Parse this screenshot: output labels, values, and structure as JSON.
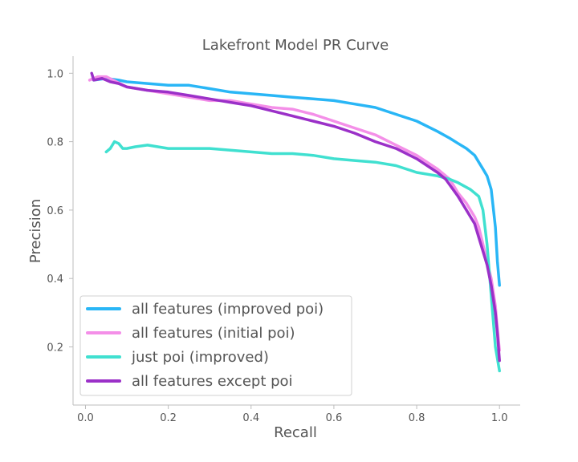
{
  "chart_data": {
    "type": "line",
    "title": "Lakefront Model PR Curve",
    "xlabel": "Recall",
    "ylabel": "Precision",
    "xlim": [
      -0.03,
      1.05
    ],
    "ylim": [
      0.03,
      1.05
    ],
    "xticks": [
      0.0,
      0.2,
      0.4,
      0.6,
      0.8,
      1.0
    ],
    "xtick_labels": [
      "0.0",
      "0.2",
      "0.4",
      "0.6",
      "0.8",
      "1.0"
    ],
    "yticks": [
      0.2,
      0.4,
      0.6,
      0.8,
      1.0
    ],
    "ytick_labels": [
      "0.2",
      "0.4",
      "0.6",
      "0.8",
      "1.0"
    ],
    "legend_position": "lower-left",
    "series": [
      {
        "name": "all features (improved poi)",
        "color": "#29b6f6",
        "x": [
          0.02,
          0.05,
          0.08,
          0.1,
          0.15,
          0.2,
          0.25,
          0.3,
          0.35,
          0.4,
          0.45,
          0.5,
          0.55,
          0.6,
          0.65,
          0.7,
          0.75,
          0.8,
          0.85,
          0.88,
          0.9,
          0.92,
          0.94,
          0.95,
          0.96,
          0.97,
          0.98,
          0.99,
          0.995,
          1.0
        ],
        "y": [
          0.98,
          0.985,
          0.98,
          0.975,
          0.97,
          0.965,
          0.965,
          0.955,
          0.945,
          0.94,
          0.935,
          0.93,
          0.925,
          0.92,
          0.91,
          0.9,
          0.88,
          0.86,
          0.83,
          0.81,
          0.795,
          0.78,
          0.76,
          0.74,
          0.72,
          0.7,
          0.66,
          0.55,
          0.45,
          0.38
        ]
      },
      {
        "name": "all features (initial poi)",
        "color": "#f48fe8",
        "x": [
          0.01,
          0.03,
          0.05,
          0.1,
          0.15,
          0.2,
          0.25,
          0.3,
          0.35,
          0.4,
          0.45,
          0.5,
          0.55,
          0.6,
          0.65,
          0.7,
          0.75,
          0.8,
          0.85,
          0.88,
          0.9,
          0.92,
          0.94,
          0.95,
          0.96,
          0.97,
          0.98,
          0.99,
          0.995,
          1.0
        ],
        "y": [
          0.98,
          0.99,
          0.99,
          0.96,
          0.95,
          0.94,
          0.93,
          0.92,
          0.92,
          0.91,
          0.9,
          0.895,
          0.88,
          0.86,
          0.84,
          0.82,
          0.79,
          0.76,
          0.72,
          0.69,
          0.65,
          0.62,
          0.58,
          0.55,
          0.5,
          0.45,
          0.4,
          0.32,
          0.25,
          0.19
        ]
      },
      {
        "name": "just poi (improved)",
        "color": "#40e0d0",
        "x": [
          0.05,
          0.06,
          0.07,
          0.08,
          0.09,
          0.1,
          0.12,
          0.15,
          0.2,
          0.25,
          0.3,
          0.35,
          0.4,
          0.45,
          0.5,
          0.55,
          0.6,
          0.65,
          0.7,
          0.75,
          0.8,
          0.85,
          0.88,
          0.9,
          0.93,
          0.95,
          0.96,
          0.97,
          0.98,
          0.99,
          1.0
        ],
        "y": [
          0.77,
          0.78,
          0.8,
          0.795,
          0.78,
          0.78,
          0.785,
          0.79,
          0.78,
          0.78,
          0.78,
          0.775,
          0.77,
          0.765,
          0.765,
          0.76,
          0.75,
          0.745,
          0.74,
          0.73,
          0.71,
          0.7,
          0.69,
          0.68,
          0.66,
          0.64,
          0.6,
          0.5,
          0.35,
          0.2,
          0.13
        ]
      },
      {
        "name": "all features except poi",
        "color": "#9b30c8",
        "x": [
          0.015,
          0.02,
          0.04,
          0.06,
          0.08,
          0.1,
          0.15,
          0.2,
          0.25,
          0.3,
          0.35,
          0.4,
          0.45,
          0.5,
          0.55,
          0.6,
          0.65,
          0.7,
          0.75,
          0.8,
          0.85,
          0.87,
          0.9,
          0.92,
          0.94,
          0.95,
          0.96,
          0.97,
          0.98,
          0.99,
          0.995,
          1.0
        ],
        "y": [
          1.0,
          0.98,
          0.985,
          0.975,
          0.97,
          0.96,
          0.95,
          0.945,
          0.935,
          0.925,
          0.915,
          0.905,
          0.89,
          0.875,
          0.86,
          0.845,
          0.825,
          0.8,
          0.78,
          0.75,
          0.71,
          0.69,
          0.64,
          0.6,
          0.56,
          0.52,
          0.48,
          0.44,
          0.38,
          0.3,
          0.24,
          0.16
        ]
      }
    ]
  }
}
